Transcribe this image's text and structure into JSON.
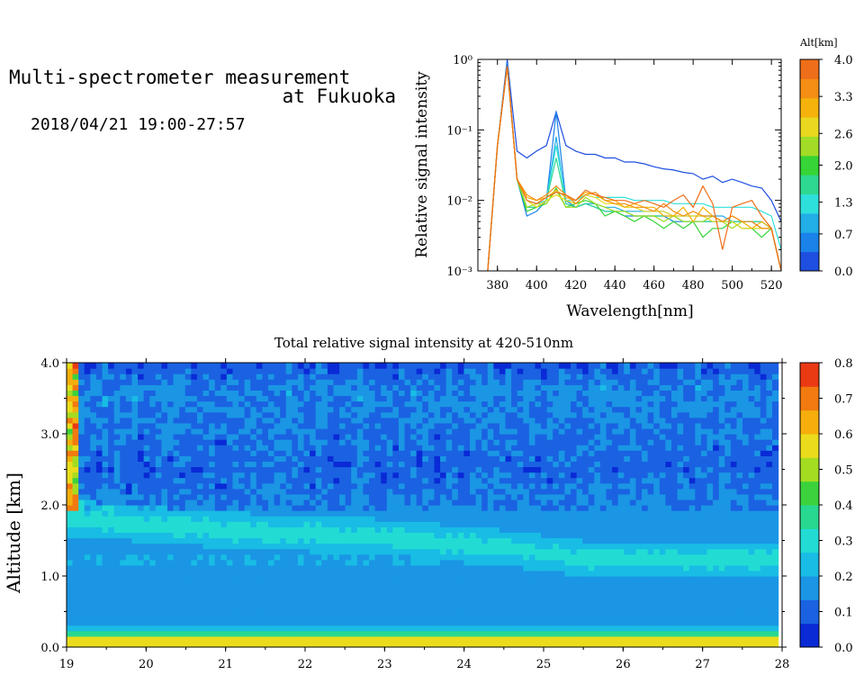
{
  "header": {
    "title_line1": "Multi-spectrometer measurement",
    "title_line2": "at Fukuoka",
    "date": "2018/04/21 19:00-27:57"
  },
  "colors": {
    "alt_scale": [
      "#1f4fe0",
      "#1a82e8",
      "#22aee6",
      "#2ee0dc",
      "#2ed890",
      "#36d436",
      "#a2dc26",
      "#ead820",
      "#f5b20c",
      "#f48e14",
      "#ef6e1a"
    ],
    "intensity_scale": [
      "#0a2ad6",
      "#1a62e2",
      "#1a96e4",
      "#18bce4",
      "#22dcd4",
      "#28d890",
      "#3cd23c",
      "#a4dc22",
      "#eadc1c",
      "#f5ae0c",
      "#f27a10",
      "#ea3a14"
    ]
  },
  "chart_data": [
    {
      "type": "line",
      "title": "",
      "xlabel": "Wavelength[nm]",
      "ylabel": "Relative signal intensity",
      "xlim": [
        370,
        525
      ],
      "ylim": [
        0.001,
        1
      ],
      "yscale": "log",
      "x_ticks": [
        "380",
        "400",
        "420",
        "440",
        "460",
        "480",
        "500",
        "520"
      ],
      "y_ticks": [
        "10⁰",
        "10⁻¹",
        "10⁻²",
        "10⁻³"
      ],
      "x": [
        375,
        380,
        385,
        390,
        395,
        400,
        405,
        410,
        415,
        420,
        425,
        430,
        435,
        440,
        445,
        450,
        455,
        460,
        465,
        470,
        475,
        480,
        485,
        490,
        495,
        500,
        505,
        510,
        515,
        520,
        525
      ],
      "series": [
        {
          "color": "#1f4fe0",
          "values": [
            0.001,
            0.06,
            1.0,
            0.05,
            0.04,
            0.05,
            0.06,
            0.18,
            0.06,
            0.05,
            0.045,
            0.045,
            0.04,
            0.04,
            0.035,
            0.035,
            0.033,
            0.03,
            0.028,
            0.027,
            0.025,
            0.024,
            0.02,
            0.022,
            0.018,
            0.02,
            0.018,
            0.016,
            0.015,
            0.01,
            0.005
          ]
        },
        {
          "color": "#1a82e8",
          "values": [
            0.001,
            0.06,
            0.9,
            0.02,
            0.006,
            0.007,
            0.01,
            0.18,
            0.01,
            0.008,
            0.009,
            0.008,
            0.007,
            0.007,
            0.006,
            0.006,
            0.006,
            0.006,
            0.006,
            0.005,
            0.005,
            0.005,
            0.005,
            0.005,
            0.005,
            0.005,
            0.005,
            0.005,
            0.004,
            0.004,
            0.001
          ]
        },
        {
          "color": "#22aee6",
          "values": [
            0.001,
            0.06,
            0.8,
            0.02,
            0.008,
            0.008,
            0.01,
            0.08,
            0.009,
            0.008,
            0.009,
            0.009,
            0.008,
            0.008,
            0.007,
            0.007,
            0.007,
            0.007,
            0.007,
            0.006,
            0.006,
            0.006,
            0.006,
            0.006,
            0.006,
            0.005,
            0.005,
            0.005,
            0.005,
            0.004,
            0.001
          ]
        },
        {
          "color": "#2ee0dc",
          "values": [
            0.001,
            0.06,
            0.8,
            0.02,
            0.01,
            0.009,
            0.01,
            0.06,
            0.01,
            0.01,
            0.012,
            0.011,
            0.011,
            0.011,
            0.011,
            0.01,
            0.01,
            0.01,
            0.01,
            0.009,
            0.009,
            0.009,
            0.009,
            0.008,
            0.008,
            0.008,
            0.008,
            0.008,
            0.007,
            0.006,
            0.002
          ]
        },
        {
          "color": "#2ed890",
          "values": [
            0.001,
            0.06,
            0.8,
            0.02,
            0.008,
            0.008,
            0.01,
            0.04,
            0.009,
            0.008,
            0.009,
            0.008,
            0.007,
            0.007,
            0.007,
            0.006,
            0.006,
            0.006,
            0.006,
            0.006,
            0.005,
            0.005,
            0.005,
            0.005,
            0.005,
            0.005,
            0.005,
            0.005,
            0.005,
            0.004,
            0.001
          ]
        },
        {
          "color": "#36d436",
          "values": [
            0.001,
            0.06,
            0.8,
            0.02,
            0.007,
            0.008,
            0.009,
            0.015,
            0.008,
            0.009,
            0.01,
            0.009,
            0.006,
            0.007,
            0.006,
            0.005,
            0.006,
            0.005,
            0.004,
            0.005,
            0.004,
            0.005,
            0.003,
            0.004,
            0.004,
            0.005,
            0.004,
            0.004,
            0.003,
            0.004,
            0.001
          ]
        },
        {
          "color": "#a2dc26",
          "values": [
            0.001,
            0.06,
            0.8,
            0.02,
            0.008,
            0.009,
            0.009,
            0.014,
            0.008,
            0.008,
            0.011,
            0.009,
            0.008,
            0.007,
            0.007,
            0.006,
            0.006,
            0.006,
            0.005,
            0.006,
            0.005,
            0.005,
            0.005,
            0.006,
            0.005,
            0.004,
            0.005,
            0.004,
            0.004,
            0.004,
            0.001
          ]
        },
        {
          "color": "#ead820",
          "values": [
            0.001,
            0.06,
            0.8,
            0.02,
            0.01,
            0.008,
            0.01,
            0.012,
            0.01,
            0.009,
            0.012,
            0.011,
            0.009,
            0.009,
            0.008,
            0.008,
            0.007,
            0.007,
            0.007,
            0.006,
            0.006,
            0.006,
            0.006,
            0.005,
            0.005,
            0.005,
            0.004,
            0.004,
            0.004,
            0.004,
            0.001
          ]
        },
        {
          "color": "#f5b20c",
          "values": [
            0.001,
            0.06,
            0.8,
            0.02,
            0.011,
            0.01,
            0.011,
            0.014,
            0.011,
            0.01,
            0.013,
            0.012,
            0.01,
            0.01,
            0.008,
            0.009,
            0.008,
            0.008,
            0.006,
            0.006,
            0.008,
            0.005,
            0.008,
            0.006,
            0.005,
            0.006,
            0.005,
            0.004,
            0.005,
            0.004,
            0.001
          ]
        },
        {
          "color": "#f48e14",
          "values": [
            0.001,
            0.06,
            0.8,
            0.02,
            0.012,
            0.01,
            0.012,
            0.016,
            0.012,
            0.009,
            0.012,
            0.013,
            0.01,
            0.009,
            0.009,
            0.008,
            0.008,
            0.007,
            0.009,
            0.007,
            0.006,
            0.007,
            0.006,
            0.006,
            0.005,
            0.006,
            0.005,
            0.005,
            0.004,
            0.004,
            0.001
          ]
        },
        {
          "color": "#ef6e1a",
          "values": [
            0.001,
            0.06,
            0.8,
            0.02,
            0.01,
            0.009,
            0.011,
            0.013,
            0.012,
            0.01,
            0.014,
            0.012,
            0.011,
            0.01,
            0.01,
            0.009,
            0.01,
            0.009,
            0.008,
            0.01,
            0.012,
            0.008,
            0.016,
            0.009,
            0.002,
            0.008,
            0.009,
            0.01,
            0.006,
            0.004,
            0.001
          ]
        }
      ]
    },
    {
      "type": "heatmap",
      "title": "Total relative signal intensity at 420-510nm",
      "xlabel": "",
      "ylabel": "Altitude [km]",
      "xlim": [
        19,
        28
      ],
      "ylim": [
        0,
        4
      ],
      "x_ticks": [
        "19",
        "20",
        "21",
        "22",
        "23",
        "24",
        "25",
        "26",
        "27",
        "28"
      ],
      "y_ticks": [
        "0.0",
        "1.0",
        "2.0",
        "3.0",
        "4.0"
      ],
      "data_end_x": 27.95,
      "altitude_profile": [
        {
          "alt": 0.15,
          "value": 0.55
        },
        {
          "alt": 0.2,
          "value": 0.3
        },
        {
          "alt": 0.28,
          "value": 0.25
        },
        {
          "alt": 0.32,
          "value": 0.2
        },
        {
          "alt": 0.5,
          "value": 0.16
        },
        {
          "alt": 0.9,
          "value": 0.15
        },
        {
          "alt": 1.2,
          "value": 0.2
        },
        {
          "alt": 2.5,
          "value": 0.1
        },
        {
          "alt": 3.6,
          "value": 0.15
        },
        {
          "alt": 4.0,
          "value": 0.08
        }
      ],
      "band_center_km": [
        {
          "x": 19.2,
          "alt": 1.8
        },
        {
          "x": 21,
          "alt": 1.65
        },
        {
          "x": 23,
          "alt": 1.55
        },
        {
          "x": 24.5,
          "alt": 1.4
        },
        {
          "x": 25.5,
          "alt": 1.25
        },
        {
          "x": 27.9,
          "alt": 1.25
        }
      ],
      "band_peak_value": 0.3,
      "colorbar": {
        "min": 0.0,
        "max": 0.8,
        "ticks": [
          "0.0",
          "0.1",
          "0.2",
          "0.3",
          "0.4",
          "0.5",
          "0.6",
          "0.7",
          "0.8"
        ]
      }
    }
  ],
  "alt_colorbar": {
    "label": "Alt[km]",
    "ticks": [
      "0.0",
      "0.7",
      "1.3",
      "2.0",
      "2.6",
      "3.3",
      "4.0"
    ]
  }
}
